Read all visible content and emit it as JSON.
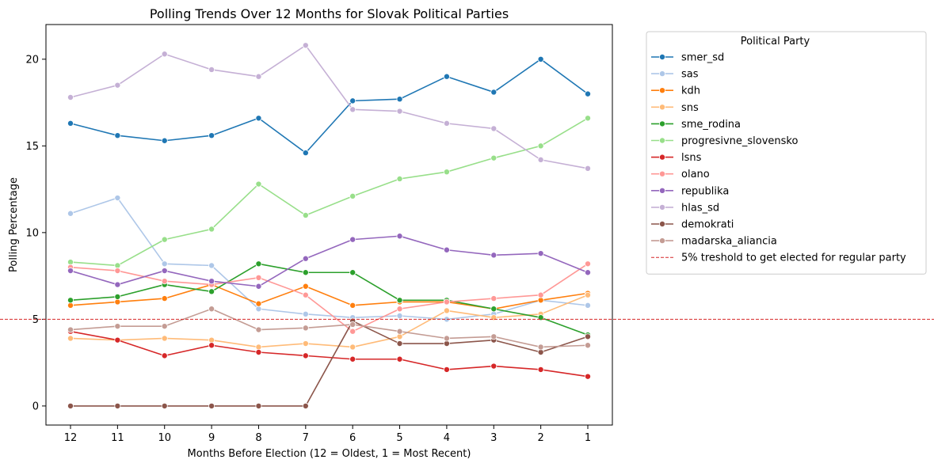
{
  "chart_data": {
    "type": "line",
    "title": "Polling Trends Over 12 Months for Slovak Political Parties",
    "xlabel": "Months Before Election (12 = Oldest, 1 = Most Recent)",
    "ylabel": "Polling Percentage",
    "x": [
      12,
      11,
      10,
      9,
      8,
      7,
      6,
      5,
      4,
      3,
      2,
      1
    ],
    "x_order": "descending",
    "ylim": [
      -1.1,
      22
    ],
    "yticks": [
      0,
      5,
      10,
      15,
      20
    ],
    "grid": false,
    "legend": {
      "title": "Political Party",
      "placement": "outside-right"
    },
    "series": [
      {
        "name": "smer_sd",
        "color": "#1f77b4",
        "values": [
          16.3,
          15.6,
          15.3,
          15.6,
          16.6,
          14.6,
          17.6,
          17.7,
          19.0,
          18.1,
          20.0,
          18.0
        ]
      },
      {
        "name": "sas",
        "color": "#aec7e8",
        "values": [
          11.1,
          12.0,
          8.2,
          8.1,
          5.6,
          5.3,
          5.1,
          5.2,
          5.0,
          5.3,
          6.1,
          5.8
        ]
      },
      {
        "name": "kdh",
        "color": "#ff7f0e",
        "values": [
          5.8,
          6.0,
          6.2,
          7.0,
          5.9,
          6.9,
          5.8,
          6.0,
          6.0,
          5.6,
          6.1,
          6.5
        ]
      },
      {
        "name": "sns",
        "color": "#ffbb78",
        "values": [
          3.9,
          3.8,
          3.9,
          3.8,
          3.4,
          3.6,
          3.4,
          4.0,
          5.5,
          5.1,
          5.3,
          6.4
        ]
      },
      {
        "name": "sme_rodina",
        "color": "#2ca02c",
        "values": [
          6.1,
          6.3,
          7.0,
          6.6,
          8.2,
          7.7,
          7.7,
          6.1,
          6.1,
          5.6,
          5.1,
          4.1
        ]
      },
      {
        "name": "progresivne_slovensko",
        "color": "#98df8a",
        "values": [
          8.3,
          8.1,
          9.6,
          10.2,
          12.8,
          11.0,
          12.1,
          13.1,
          13.5,
          14.3,
          15.0,
          16.6
        ]
      },
      {
        "name": "lsns",
        "color": "#d62728",
        "values": [
          4.3,
          3.8,
          2.9,
          3.5,
          3.1,
          2.9,
          2.7,
          2.7,
          2.1,
          2.3,
          2.1,
          1.7
        ]
      },
      {
        "name": "olano",
        "color": "#ff9896",
        "values": [
          8.0,
          7.8,
          7.2,
          7.0,
          7.4,
          6.4,
          4.3,
          5.6,
          6.0,
          6.2,
          6.4,
          8.2
        ]
      },
      {
        "name": "republika",
        "color": "#9467bd",
        "values": [
          7.8,
          7.0,
          7.8,
          7.2,
          6.9,
          8.5,
          9.6,
          9.8,
          9.0,
          8.7,
          8.8,
          7.7
        ]
      },
      {
        "name": "hlas_sd",
        "color": "#c5b0d5",
        "values": [
          17.8,
          18.5,
          20.3,
          19.4,
          19.0,
          20.8,
          17.1,
          17.0,
          16.3,
          16.0,
          14.2,
          13.7
        ]
      },
      {
        "name": "demokrati",
        "color": "#8c564b",
        "values": [
          0.0,
          0.0,
          0.0,
          0.0,
          0.0,
          0.0,
          4.9,
          3.6,
          3.6,
          3.8,
          3.1,
          4.0
        ]
      },
      {
        "name": "madarska_aliancia",
        "color": "#c49c94",
        "values": [
          4.4,
          4.6,
          4.6,
          5.6,
          4.4,
          4.5,
          4.7,
          4.3,
          3.9,
          4.0,
          3.4,
          3.5
        ]
      }
    ],
    "threshold": {
      "value": 5,
      "label": "5% treshold to get elected for regular party",
      "color": "#d62728",
      "style": "dashed"
    }
  }
}
